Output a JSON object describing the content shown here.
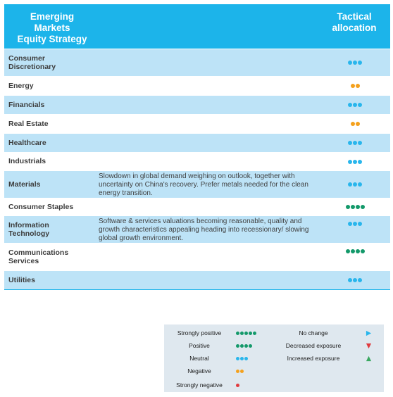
{
  "colors": {
    "header_bg": "#1cb4ea",
    "row_blue": "#bde3f7",
    "neutral_dot": "#29b6ec",
    "positive_dot": "#13996a",
    "negative_dot": "#f4a11d",
    "strongly_negative_dot": "#e03a3e",
    "increase_arrow": "#3aa860",
    "decrease_arrow": "#e03a3e",
    "no_change_arrow": "#29b6ec"
  },
  "header": {
    "title": "Emerging\nMarkets\nEquity Strategy",
    "allocation_label": "Tactical\nallocation"
  },
  "rows": [
    {
      "sector": "Consumer\nDiscretionary",
      "comment": "",
      "allocation": "Neutral",
      "dots": 3,
      "dot_color": "#29b6ec"
    },
    {
      "sector": "Energy",
      "comment": "",
      "allocation": "Negative",
      "dots": 2,
      "dot_color": "#f4a11d"
    },
    {
      "sector": "Financials",
      "comment": "",
      "allocation": "Neutral",
      "dots": 3,
      "dot_color": "#29b6ec"
    },
    {
      "sector": "Real Estate",
      "comment": "",
      "allocation": "Negative",
      "dots": 2,
      "dot_color": "#f4a11d"
    },
    {
      "sector": "Healthcare",
      "comment": "",
      "allocation": "Neutral",
      "dots": 3,
      "dot_color": "#29b6ec"
    },
    {
      "sector": "Industrials",
      "comment": "",
      "allocation": "Neutral",
      "dots": 3,
      "dot_color": "#29b6ec"
    },
    {
      "sector": "Materials",
      "comment": "Slowdown in global demand weighing on outlook, together with uncertainty on China's recovery. Prefer metals needed for the clean energy transition.",
      "allocation": "Neutral",
      "dots": 3,
      "dot_color": "#29b6ec"
    },
    {
      "sector": "Consumer Staples",
      "comment": "",
      "allocation": "Positive",
      "dots": 4,
      "dot_color": "#13996a"
    },
    {
      "sector": "Information\nTechnology",
      "comment": "Software & services valuations becoming reasonable, quality and growth characteristics appealing heading into recessionary/ slowing global growth environment.",
      "allocation": "Neutral",
      "dots": 3,
      "dot_color": "#29b6ec"
    },
    {
      "sector": "Communications\nServices",
      "comment": "",
      "allocation": "Positive",
      "dots": 4,
      "dot_color": "#13996a"
    },
    {
      "sector": "Utilities",
      "comment": "",
      "allocation": "Neutral",
      "dots": 3,
      "dot_color": "#29b6ec"
    }
  ],
  "legend": {
    "ratings": [
      {
        "label": "Strongly positive",
        "dots": 5,
        "color": "#13996a"
      },
      {
        "label": "Positive",
        "dots": 4,
        "color": "#13996a"
      },
      {
        "label": "Neutral",
        "dots": 3,
        "color": "#29b6ec"
      },
      {
        "label": "Negative",
        "dots": 2,
        "color": "#f4a11d"
      },
      {
        "label": "Strongly negative",
        "dots": 1,
        "color": "#e03a3e"
      }
    ],
    "changes": [
      {
        "label": "No change",
        "symbol": "right-triangle-icon",
        "color": "#29b6ec"
      },
      {
        "label": "Decreased exposure",
        "symbol": "down-triangle-icon",
        "color": "#e03a3e"
      },
      {
        "label": "Increased exposure",
        "symbol": "up-triangle-icon",
        "color": "#3aa860"
      }
    ]
  }
}
